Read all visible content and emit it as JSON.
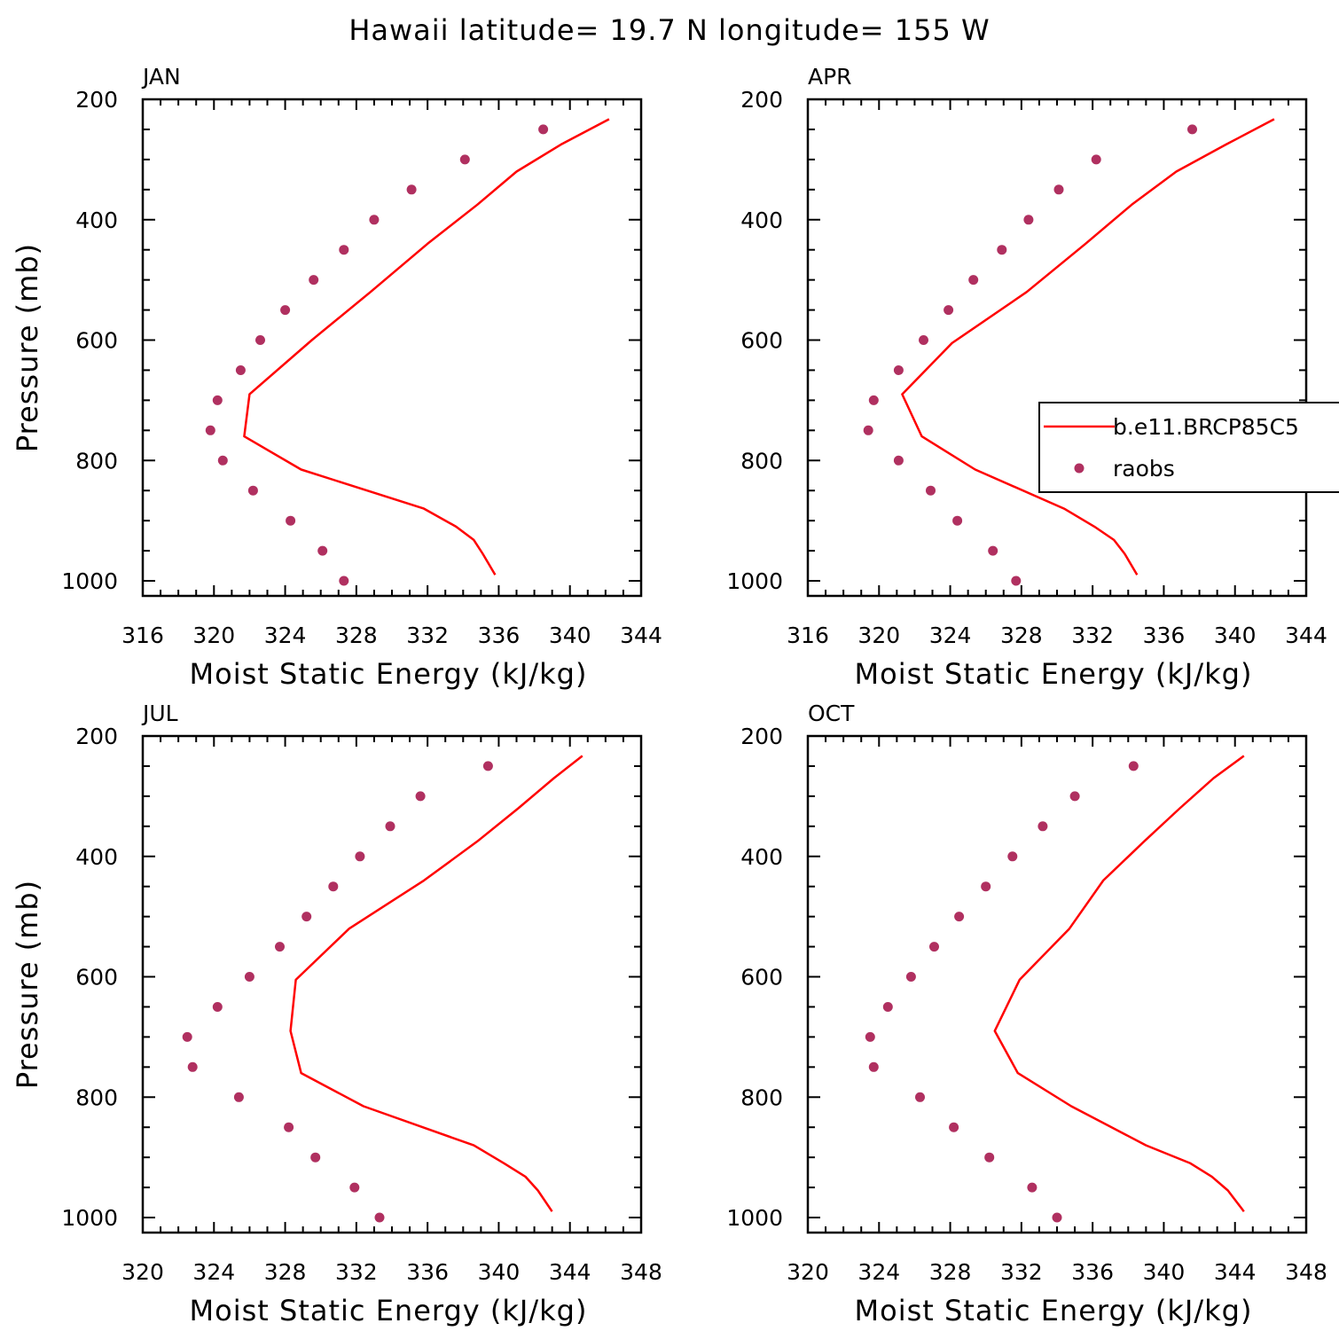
{
  "figure_title": "Hawaii  latitude= 19.7 N longitude= 155 W",
  "colors": {
    "model": "#ff0000",
    "obs": "#b03060",
    "axes": "#000000"
  },
  "legend": {
    "placement": "inside-right of APR panel",
    "model_label": "b.e11.BRCP85C5",
    "obs_label": "raobs"
  },
  "chart_data": [
    {
      "type": "line+scatter",
      "month": "JAN",
      "xlabel": "Moist Static Energy (kJ/kg)",
      "ylabel": "Pressure (mb)",
      "xlim": [
        316,
        344
      ],
      "xticks": [
        316,
        320,
        324,
        328,
        332,
        336,
        340,
        344
      ],
      "ylim": [
        1025,
        200
      ],
      "yticks": [
        200,
        400,
        600,
        800,
        1000
      ],
      "series": [
        {
          "name": "b.e11.BRCP85C5",
          "kind": "line",
          "pressure": [
            233,
            275,
            320,
            375,
            440,
            520,
            600,
            690,
            760,
            815,
            880,
            910,
            932,
            955,
            990
          ],
          "mse": [
            342.2,
            339.5,
            337.0,
            334.8,
            332.0,
            328.8,
            325.5,
            322.0,
            321.7,
            324.9,
            331.8,
            333.6,
            334.6,
            335.1,
            335.8
          ]
        },
        {
          "name": "raobs",
          "kind": "scatter",
          "pressure": [
            250,
            300,
            350,
            400,
            450,
            500,
            550,
            600,
            650,
            700,
            750,
            800,
            850,
            900,
            950,
            1000
          ],
          "mse": [
            338.5,
            334.1,
            331.1,
            329.0,
            327.3,
            325.6,
            324.0,
            322.6,
            321.5,
            320.2,
            319.8,
            320.5,
            322.2,
            324.3,
            326.1,
            327.3
          ]
        }
      ]
    },
    {
      "type": "line+scatter",
      "month": "APR",
      "xlabel": "Moist Static Energy (kJ/kg)",
      "ylabel": "",
      "xlim": [
        316,
        344
      ],
      "xticks": [
        316,
        320,
        324,
        328,
        332,
        336,
        340,
        344
      ],
      "ylim": [
        1025,
        200
      ],
      "yticks": [
        200,
        400,
        600,
        800,
        1000
      ],
      "series": [
        {
          "name": "b.e11.BRCP85C5",
          "kind": "line",
          "pressure": [
            233,
            275,
            320,
            375,
            440,
            520,
            605,
            690,
            760,
            815,
            880,
            910,
            932,
            955,
            990
          ],
          "mse": [
            342.2,
            339.5,
            336.7,
            334.2,
            331.6,
            328.3,
            324.1,
            321.3,
            322.4,
            325.4,
            330.4,
            332.1,
            333.2,
            333.8,
            334.5
          ]
        },
        {
          "name": "raobs",
          "kind": "scatter",
          "pressure": [
            250,
            300,
            350,
            400,
            450,
            500,
            550,
            600,
            650,
            700,
            750,
            800,
            850,
            900,
            950,
            1000
          ],
          "mse": [
            337.6,
            332.2,
            330.1,
            328.4,
            326.9,
            325.3,
            323.9,
            322.5,
            321.1,
            319.7,
            319.4,
            321.1,
            322.9,
            324.4,
            326.4,
            327.7
          ]
        }
      ]
    },
    {
      "type": "line+scatter",
      "month": "JUL",
      "xlabel": "Moist Static Energy (kJ/kg)",
      "ylabel": "Pressure (mb)",
      "xlim": [
        320,
        348
      ],
      "xticks": [
        320,
        324,
        328,
        332,
        336,
        340,
        344,
        348
      ],
      "ylim": [
        1025,
        200
      ],
      "yticks": [
        200,
        400,
        600,
        800,
        1000
      ],
      "series": [
        {
          "name": "b.e11.BRCP85C5",
          "kind": "line",
          "pressure": [
            233,
            270,
            320,
            375,
            440,
            520,
            605,
            690,
            760,
            815,
            880,
            910,
            932,
            955,
            990
          ],
          "mse": [
            344.7,
            343.1,
            341.1,
            338.8,
            335.8,
            331.6,
            328.6,
            328.3,
            328.9,
            332.4,
            338.6,
            340.3,
            341.5,
            342.2,
            343.0
          ]
        },
        {
          "name": "raobs",
          "kind": "scatter",
          "pressure": [
            250,
            300,
            350,
            400,
            450,
            500,
            550,
            600,
            650,
            700,
            750,
            800,
            850,
            900,
            950,
            1000
          ],
          "mse": [
            339.4,
            335.6,
            333.9,
            332.2,
            330.7,
            329.2,
            327.7,
            326.0,
            324.2,
            322.5,
            322.8,
            325.4,
            328.2,
            329.7,
            331.9,
            333.3
          ]
        }
      ]
    },
    {
      "type": "line+scatter",
      "month": "OCT",
      "xlabel": "Moist Static Energy (kJ/kg)",
      "ylabel": "",
      "xlim": [
        320,
        348
      ],
      "xticks": [
        320,
        324,
        328,
        332,
        336,
        340,
        344,
        348
      ],
      "ylim": [
        1025,
        200
      ],
      "yticks": [
        200,
        400,
        600,
        800,
        1000
      ],
      "series": [
        {
          "name": "b.e11.BRCP85C5",
          "kind": "line",
          "pressure": [
            233,
            270,
            320,
            375,
            440,
            520,
            605,
            690,
            760,
            815,
            880,
            910,
            932,
            955,
            990
          ],
          "mse": [
            344.5,
            342.8,
            340.9,
            338.9,
            336.6,
            334.7,
            331.9,
            330.5,
            331.8,
            334.8,
            339.0,
            341.5,
            342.7,
            343.6,
            344.5
          ]
        },
        {
          "name": "raobs",
          "kind": "scatter",
          "pressure": [
            250,
            300,
            350,
            400,
            450,
            500,
            550,
            600,
            650,
            700,
            750,
            800,
            850,
            900,
            950,
            1000
          ],
          "mse": [
            338.3,
            335.0,
            333.2,
            331.5,
            330.0,
            328.5,
            327.1,
            325.8,
            324.5,
            323.5,
            323.7,
            326.3,
            328.2,
            330.2,
            332.6,
            334.0
          ]
        }
      ]
    }
  ]
}
